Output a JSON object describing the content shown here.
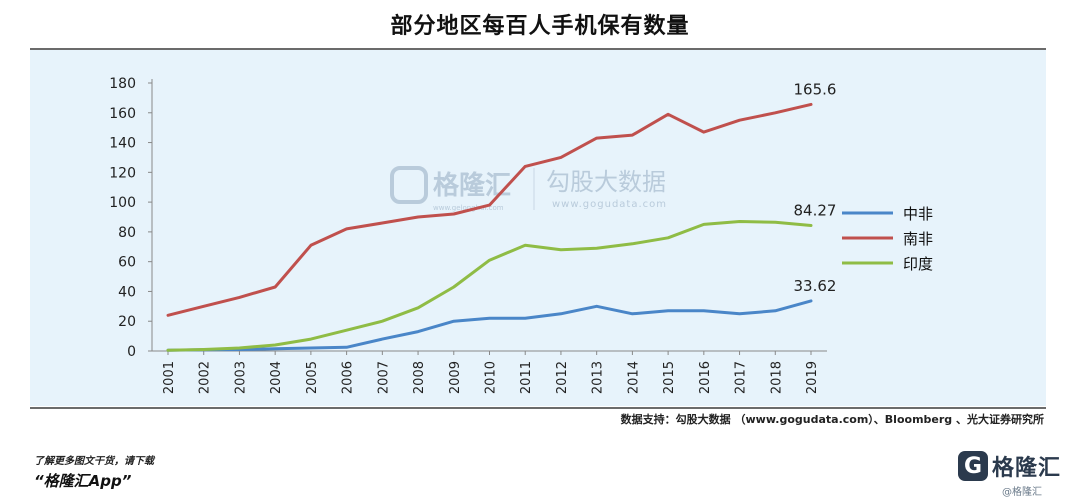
{
  "title": "部分地区每百人手机保有数量",
  "source": "数据支持：勾股大数据 （www.gogudata.com）、Bloomberg 、光大证券研究所",
  "promo": {
    "line1": "了解更多图文干货，请下载",
    "line2": "“格隆汇App”"
  },
  "brand": {
    "logo_letter": "G",
    "name": "格隆汇",
    "small": "@格隆汇"
  },
  "watermark": {
    "brand": "格隆汇",
    "brand_url": "www.gelonghui.com",
    "sub": "勾股大数据",
    "sub_url": "www.gogudata.com"
  },
  "chart_data": {
    "type": "line",
    "title": "部分地区每百人手机保有数量",
    "x": [
      "2001",
      "2002",
      "2003",
      "2004",
      "2005",
      "2006",
      "2007",
      "2008",
      "2009",
      "2010",
      "2011",
      "2012",
      "2013",
      "2014",
      "2015",
      "2016",
      "2017",
      "2018",
      "2019"
    ],
    "ylim": [
      0,
      180
    ],
    "yticks": [
      0,
      20,
      40,
      60,
      80,
      100,
      120,
      140,
      160,
      180
    ],
    "grid": false,
    "legend_position": "right",
    "series": [
      {
        "name": "中非",
        "color": "#4a86c8",
        "values": [
          0.5,
          0.8,
          1.0,
          1.5,
          2.0,
          2.5,
          8,
          13,
          20,
          22,
          22,
          25,
          30,
          25,
          27,
          27,
          25,
          27,
          33.62
        ],
        "end_label": "33.62"
      },
      {
        "name": "南非",
        "color": "#c0504d",
        "values": [
          24,
          30,
          36,
          43,
          71,
          82,
          86,
          90,
          92,
          98,
          124,
          130,
          143,
          145,
          159,
          147,
          155,
          160,
          165.6
        ],
        "end_label": "165.6"
      },
      {
        "name": "印度",
        "color": "#8fbc45",
        "values": [
          0.5,
          1.0,
          2.0,
          4.0,
          8,
          14,
          20,
          29,
          43,
          61,
          71,
          68,
          69,
          72,
          76,
          85,
          87,
          86.5,
          84.27
        ],
        "end_label": "84.27"
      }
    ]
  }
}
